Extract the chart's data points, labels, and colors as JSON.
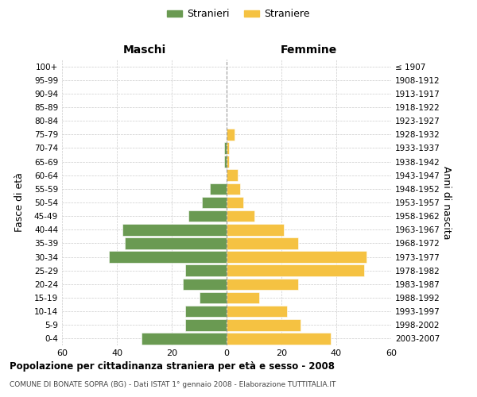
{
  "age_groups_bottom_to_top": [
    "0-4",
    "5-9",
    "10-14",
    "15-19",
    "20-24",
    "25-29",
    "30-34",
    "35-39",
    "40-44",
    "45-49",
    "50-54",
    "55-59",
    "60-64",
    "65-69",
    "70-74",
    "75-79",
    "80-84",
    "85-89",
    "90-94",
    "95-99",
    "100+"
  ],
  "birth_years_bottom_to_top": [
    "2003-2007",
    "1998-2002",
    "1993-1997",
    "1988-1992",
    "1983-1987",
    "1978-1982",
    "1973-1977",
    "1968-1972",
    "1963-1967",
    "1958-1962",
    "1953-1957",
    "1948-1952",
    "1943-1947",
    "1938-1942",
    "1933-1937",
    "1928-1932",
    "1923-1927",
    "1918-1922",
    "1913-1917",
    "1908-1912",
    "≤ 1907"
  ],
  "males_bottom_to_top": [
    31,
    15,
    15,
    10,
    16,
    15,
    43,
    37,
    38,
    14,
    9,
    6,
    0,
    1,
    1,
    0,
    0,
    0,
    0,
    0,
    0
  ],
  "females_bottom_to_top": [
    38,
    27,
    22,
    12,
    26,
    50,
    51,
    26,
    21,
    10,
    6,
    5,
    4,
    1,
    1,
    3,
    0,
    0,
    0,
    0,
    0
  ],
  "male_color": "#6a9a52",
  "female_color": "#f5c242",
  "male_label": "Stranieri",
  "female_label": "Straniere",
  "xlim": 60,
  "title": "Popolazione per cittadinanza straniera per età e sesso - 2008",
  "subtitle": "COMUNE DI BONATE SOPRA (BG) - Dati ISTAT 1° gennaio 2008 - Elaborazione TUTTITALIA.IT",
  "ylabel_left": "Fasce di età",
  "ylabel_right": "Anni di nascita",
  "maschi_label": "Maschi",
  "femmine_label": "Femmine",
  "background_color": "#ffffff",
  "grid_color": "#cccccc"
}
